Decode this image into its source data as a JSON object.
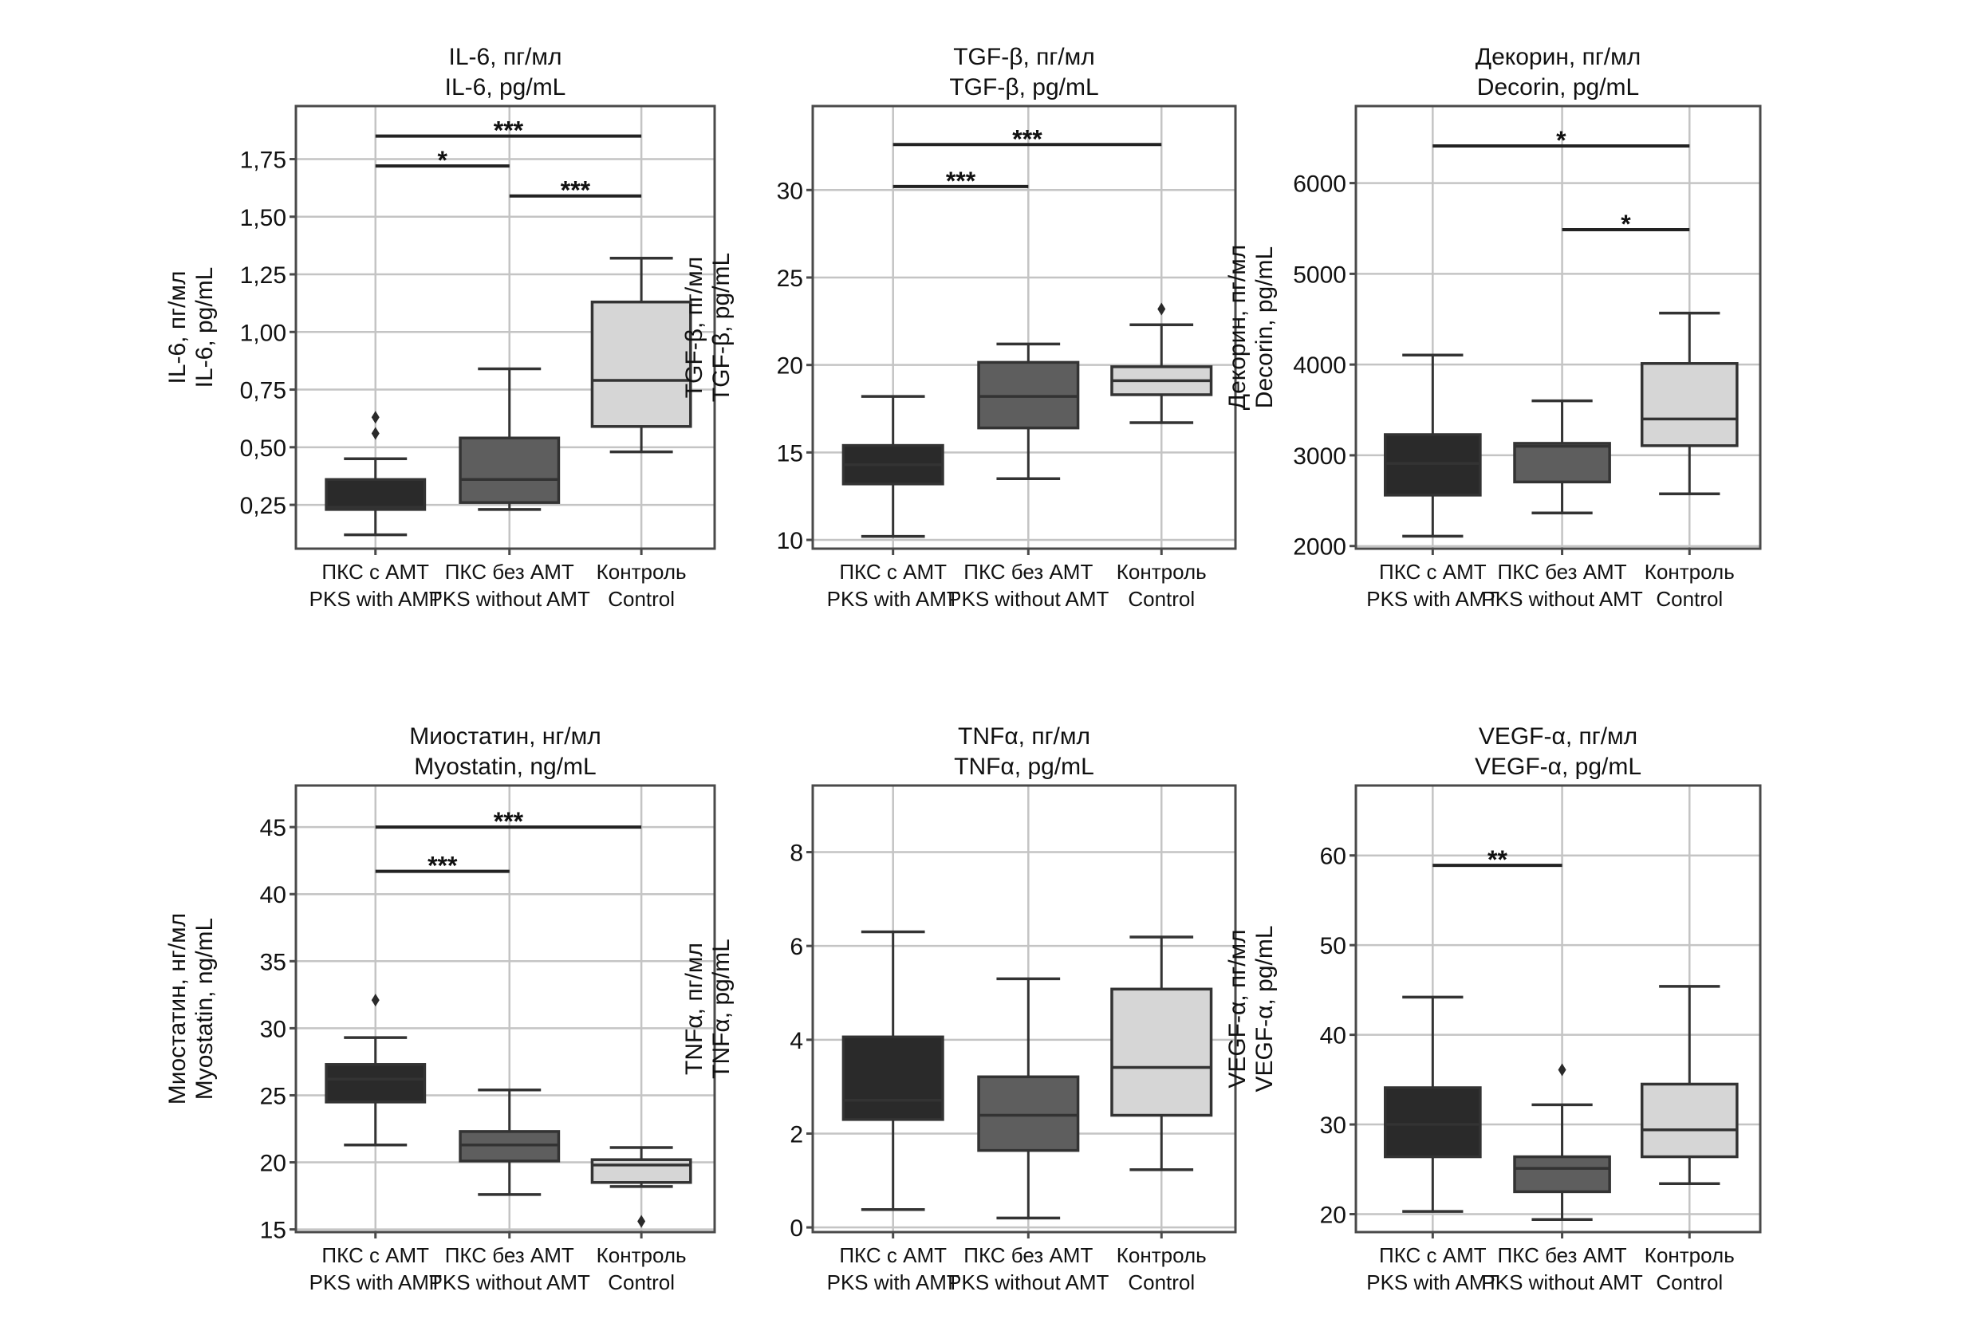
{
  "chart_data": [
    {
      "type": "box",
      "title": [
        "IL-6, пг/мл",
        "IL-6, pg/mL"
      ],
      "ylabel": [
        "IL-6, пг/мл",
        "IL-6, pg/mL"
      ],
      "ylim": [
        0.06,
        1.98
      ],
      "yticks": [
        0.25,
        0.5,
        0.75,
        1.0,
        1.25,
        1.5,
        1.75
      ],
      "ytick_labels": [
        "0,25",
        "0,50",
        "0,75",
        "1,00",
        "1,25",
        "1,50",
        "1,75"
      ],
      "categories": [
        [
          "ПКС с АМТ",
          "PKS with AMT"
        ],
        [
          "ПКС без АМТ",
          "PKS without AMT"
        ],
        [
          "Контроль",
          "Control"
        ]
      ],
      "boxes": [
        {
          "q1": 0.23,
          "median": 0.24,
          "q3": 0.36,
          "whisker_low": 0.12,
          "whisker_high": 0.45,
          "outliers": [
            0.56,
            0.63
          ]
        },
        {
          "q1": 0.26,
          "median": 0.36,
          "q3": 0.54,
          "whisker_low": 0.23,
          "whisker_high": 0.84,
          "outliers": []
        },
        {
          "q1": 0.59,
          "median": 0.79,
          "q3": 1.13,
          "whisker_low": 0.48,
          "whisker_high": 1.32,
          "outliers": []
        }
      ],
      "significance": [
        {
          "from": 0,
          "to": 2,
          "y": 1.85,
          "label": "***"
        },
        {
          "from": 0,
          "to": 1,
          "y": 1.72,
          "label": "*"
        },
        {
          "from": 1,
          "to": 2,
          "y": 1.59,
          "label": "***"
        }
      ],
      "grid": true
    },
    {
      "type": "box",
      "title": [
        "TGF-β, пг/мл",
        "TGF-β, pg/mL"
      ],
      "ylabel": [
        "TGF-β, пг/мл",
        "TGF-β, pg/mL"
      ],
      "ylim": [
        9.5,
        34.8
      ],
      "yticks": [
        10,
        15,
        20,
        25,
        30
      ],
      "ytick_labels": [
        "10",
        "15",
        "20",
        "25",
        "30"
      ],
      "categories": [
        [
          "ПКС с АМТ",
          "PKS with AMT"
        ],
        [
          "ПКС без АМТ",
          "PKS without AMT"
        ],
        [
          "Контроль",
          "Control"
        ]
      ],
      "boxes": [
        {
          "q1": 13.2,
          "median": 14.3,
          "q3": 15.4,
          "whisker_low": 10.2,
          "whisker_high": 18.2,
          "outliers": []
        },
        {
          "q1": 16.4,
          "median": 18.2,
          "q3": 20.15,
          "whisker_low": 13.5,
          "whisker_high": 21.2,
          "outliers": []
        },
        {
          "q1": 18.3,
          "median": 19.1,
          "q3": 19.9,
          "whisker_low": 16.7,
          "whisker_high": 22.3,
          "outliers": [
            23.2
          ]
        }
      ],
      "significance": [
        {
          "from": 0,
          "to": 2,
          "y": 32.6,
          "label": "***"
        },
        {
          "from": 0,
          "to": 1,
          "y": 30.2,
          "label": "***"
        }
      ],
      "grid": true
    },
    {
      "type": "box",
      "title": [
        "Декорин, пг/мл",
        "Decorin, pg/mL"
      ],
      "ylabel": [
        "Декорин, пг/мл",
        "Decorin, pg/mL"
      ],
      "ylim": [
        1971,
        6849
      ],
      "yticks": [
        2000,
        3000,
        4000,
        5000,
        6000
      ],
      "ytick_labels": [
        "2000",
        "3000",
        "4000",
        "5000",
        "6000"
      ],
      "categories": [
        [
          "ПКС с АМТ",
          "PKS with AMT"
        ],
        [
          "ПКС без АМТ",
          "PKS without AMT"
        ],
        [
          "Контроль",
          "Control"
        ]
      ],
      "boxes": [
        {
          "q1": 2561,
          "median": 2910,
          "q3": 3228,
          "whisker_low": 2108,
          "whisker_high": 4105,
          "outliers": []
        },
        {
          "q1": 2706,
          "median": 3099,
          "q3": 3132,
          "whisker_low": 2364,
          "whisker_high": 3600,
          "outliers": []
        },
        {
          "q1": 3106,
          "median": 3400,
          "q3": 4012,
          "whisker_low": 2575,
          "whisker_high": 4567,
          "outliers": []
        }
      ],
      "significance": [
        {
          "from": 0,
          "to": 2,
          "y": 6410,
          "label": "*"
        },
        {
          "from": 1,
          "to": 2,
          "y": 5487,
          "label": "*"
        }
      ],
      "grid": true
    },
    {
      "type": "box",
      "title": [
        "Миостатин, нг/мл",
        "Myostatin, ng/mL"
      ],
      "ylabel": [
        "Миостатин, нг/мл",
        "Myostatin, ng/mL"
      ],
      "ylim": [
        14.8,
        48.1
      ],
      "yticks": [
        15,
        20,
        25,
        30,
        35,
        40,
        45
      ],
      "ytick_labels": [
        "15",
        "20",
        "25",
        "30",
        "35",
        "40",
        "45"
      ],
      "categories": [
        [
          "ПКС с АМТ",
          "PKS with AMT"
        ],
        [
          "ПКС без АМТ",
          "PKS without AMT"
        ],
        [
          "Контроль",
          "Control"
        ]
      ],
      "boxes": [
        {
          "q1": 24.5,
          "median": 26.2,
          "q3": 27.3,
          "whisker_low": 21.3,
          "whisker_high": 29.3,
          "outliers": [
            32.1
          ]
        },
        {
          "q1": 20.1,
          "median": 21.3,
          "q3": 22.3,
          "whisker_low": 17.6,
          "whisker_high": 25.4,
          "outliers": []
        },
        {
          "q1": 18.5,
          "median": 19.8,
          "q3": 20.2,
          "whisker_low": 18.2,
          "whisker_high": 21.1,
          "outliers": [
            15.6
          ]
        }
      ],
      "significance": [
        {
          "from": 0,
          "to": 2,
          "y": 45.0,
          "label": "***"
        },
        {
          "from": 0,
          "to": 1,
          "y": 41.7,
          "label": "***"
        }
      ],
      "grid": true
    },
    {
      "type": "box",
      "title": [
        "TNFα, пг/мл",
        "TNFα, pg/mL"
      ],
      "ylabel": [
        "TNFα, пг/мл",
        "TNFα, pg/mL"
      ],
      "ylim": [
        -0.1,
        9.42
      ],
      "yticks": [
        0,
        2,
        4,
        6,
        8
      ],
      "ytick_labels": [
        "0",
        "2",
        "4",
        "6",
        "8"
      ],
      "categories": [
        [
          "ПКС с АМТ",
          "PKS with AMT"
        ],
        [
          "ПКС без АМТ",
          "PKS without AMT"
        ],
        [
          "Контроль",
          "Control"
        ]
      ],
      "boxes": [
        {
          "q1": 2.3,
          "median": 2.71,
          "q3": 4.06,
          "whisker_low": 0.38,
          "whisker_high": 6.3,
          "outliers": []
        },
        {
          "q1": 1.64,
          "median": 2.39,
          "q3": 3.21,
          "whisker_low": 0.2,
          "whisker_high": 5.3,
          "outliers": []
        },
        {
          "q1": 2.39,
          "median": 3.41,
          "q3": 5.08,
          "whisker_low": 1.23,
          "whisker_high": 6.19,
          "outliers": []
        }
      ],
      "significance": [],
      "grid": true
    },
    {
      "type": "box",
      "title": [
        "VEGF-α, пг/мл",
        "VEGF-α, pg/mL"
      ],
      "ylabel": [
        "VEGF-α, пг/мл",
        "VEGF-α, pg/mL"
      ],
      "ylim": [
        18.0,
        67.8
      ],
      "yticks": [
        20,
        30,
        40,
        50,
        60
      ],
      "ytick_labels": [
        "20",
        "30",
        "40",
        "50",
        "60"
      ],
      "categories": [
        [
          "ПКС с АМТ",
          "PKS with AMT"
        ],
        [
          "ПКС без АМТ",
          "PKS without AMT"
        ],
        [
          "Контроль",
          "Control"
        ]
      ],
      "boxes": [
        {
          "q1": 26.4,
          "median": 30.0,
          "q3": 34.1,
          "whisker_low": 20.3,
          "whisker_high": 44.2,
          "outliers": []
        },
        {
          "q1": 22.5,
          "median": 25.1,
          "q3": 26.4,
          "whisker_low": 19.4,
          "whisker_high": 32.2,
          "outliers": [
            36.1
          ]
        },
        {
          "q1": 26.4,
          "median": 29.4,
          "q3": 34.5,
          "whisker_low": 23.4,
          "whisker_high": 45.4,
          "outliers": []
        }
      ],
      "significance": [
        {
          "from": 0,
          "to": 1,
          "y": 58.9,
          "label": "**"
        }
      ],
      "grid": true
    }
  ],
  "colors": {
    "group_fills": [
      "#2a2a2a",
      "#5e5e5e",
      "#d6d6d6"
    ],
    "lines": "#333333",
    "grid": "#c4c4c4",
    "frame": "#4a4a4a"
  }
}
